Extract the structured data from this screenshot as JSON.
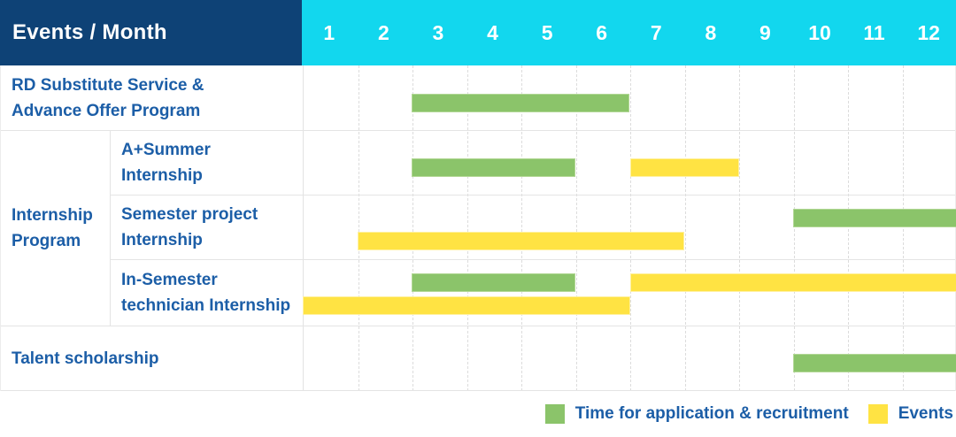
{
  "header": {
    "events_month_label": "Events / Month",
    "months": [
      "1",
      "2",
      "3",
      "4",
      "5",
      "6",
      "7",
      "8",
      "9",
      "10",
      "11",
      "12"
    ]
  },
  "group": {
    "label_lines": [
      "Internship",
      "Program"
    ]
  },
  "rows": [
    {
      "id": "rd-substitute-service",
      "label_lines": [
        "RD Substitute Service &",
        "Advance Offer Program"
      ],
      "in_group": false,
      "bars": [
        {
          "type": "application",
          "start": 3,
          "end": 7,
          "lane": "single"
        }
      ]
    },
    {
      "id": "a-plus-summer-internship",
      "label_lines": [
        "A+Summer",
        "Internship"
      ],
      "in_group": true,
      "bars": [
        {
          "type": "application",
          "start": 3,
          "end": 6,
          "lane": "single"
        },
        {
          "type": "event",
          "start": 7,
          "end": 9,
          "lane": "single"
        }
      ]
    },
    {
      "id": "semester-project-internship",
      "label_lines": [
        "Semester project",
        "Internship"
      ],
      "in_group": true,
      "bars": [
        {
          "type": "application",
          "start": 10,
          "end": 13,
          "lane": "upper"
        },
        {
          "type": "event",
          "start": 2,
          "end": 8,
          "lane": "lower"
        }
      ]
    },
    {
      "id": "in-semester-technician-internship",
      "label_lines": [
        "In-Semester",
        "technician Internship"
      ],
      "in_group": true,
      "bars": [
        {
          "type": "application",
          "start": 3,
          "end": 6,
          "lane": "upper"
        },
        {
          "type": "event",
          "start": 7,
          "end": 13,
          "lane": "upper"
        },
        {
          "type": "event",
          "start": 1,
          "end": 7,
          "lane": "lower"
        }
      ]
    },
    {
      "id": "talent-scholarship",
      "label_lines": [
        "Talent scholarship"
      ],
      "in_group": false,
      "bars": [
        {
          "type": "application",
          "start": 10,
          "end": 13,
          "lane": "single"
        }
      ]
    }
  ],
  "legend": {
    "items": [
      {
        "key": "application",
        "label": "Time for application & recruitment"
      },
      {
        "key": "event",
        "label": "Events"
      }
    ]
  },
  "colors": {
    "header_navy": "#0e4276",
    "header_cyan": "#12d7ee",
    "application_green": "#8bc46a",
    "event_yellow": "#ffe343",
    "label_blue": "#1c5ea7"
  },
  "chart_data": {
    "type": "table",
    "subtype": "gantt",
    "title": "Events / Month",
    "x_unit": "month",
    "x_ticks": [
      1,
      2,
      3,
      4,
      5,
      6,
      7,
      8,
      9,
      10,
      11,
      12
    ],
    "legend": [
      "Time for application & recruitment",
      "Events"
    ],
    "tasks": [
      {
        "name": "RD Substitute Service & Advance Offer Program",
        "group": null,
        "application_recruitment_months": [
          [
            3,
            6
          ]
        ],
        "event_months": []
      },
      {
        "name": "A+Summer Internship",
        "group": "Internship Program",
        "application_recruitment_months": [
          [
            3,
            5
          ]
        ],
        "event_months": [
          [
            7,
            8
          ]
        ]
      },
      {
        "name": "Semester project Internship",
        "group": "Internship Program",
        "application_recruitment_months": [
          [
            10,
            12
          ]
        ],
        "event_months": [
          [
            2,
            7
          ]
        ]
      },
      {
        "name": "In-Semester technician Internship",
        "group": "Internship Program",
        "application_recruitment_months": [
          [
            3,
            5
          ]
        ],
        "event_months": [
          [
            7,
            12
          ],
          [
            1,
            6
          ]
        ]
      },
      {
        "name": "Talent scholarship",
        "group": null,
        "application_recruitment_months": [
          [
            10,
            12
          ]
        ],
        "event_months": []
      }
    ]
  }
}
